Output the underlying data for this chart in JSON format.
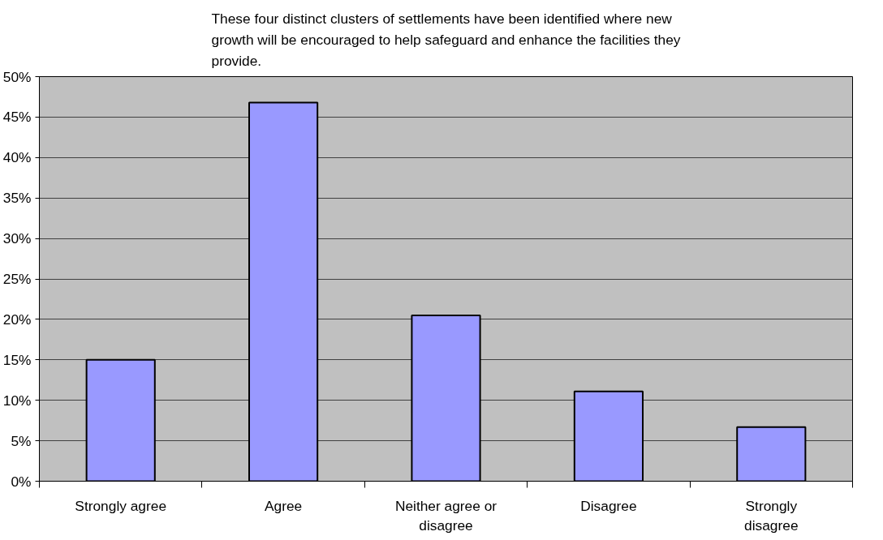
{
  "chart_data": {
    "type": "bar",
    "title": "These four distinct clusters of settlements have been identified where new growth will be encouraged to help safeguard and enhance the facilities they provide.",
    "categories": [
      "Strongly agree",
      "Agree",
      "Neither agree or disagree",
      "Disagree",
      "Strongly disagree"
    ],
    "values": [
      15,
      46.8,
      20.5,
      11.1,
      6.7
    ],
    "color": "#9999ff",
    "ylim": [
      0,
      50
    ],
    "yticks": [
      {
        "value": 0,
        "label": "0%"
      },
      {
        "value": 5,
        "label": "5%"
      },
      {
        "value": 10,
        "label": "10%"
      },
      {
        "value": 15,
        "label": "15%"
      },
      {
        "value": 20,
        "label": "20%"
      },
      {
        "value": 25,
        "label": "25%"
      },
      {
        "value": 30,
        "label": "30%"
      },
      {
        "value": 35,
        "label": "35%"
      },
      {
        "value": 40,
        "label": "40%"
      },
      {
        "value": 45,
        "label": "45%"
      },
      {
        "value": 50,
        "label": "50%"
      }
    ],
    "grid": "y"
  }
}
